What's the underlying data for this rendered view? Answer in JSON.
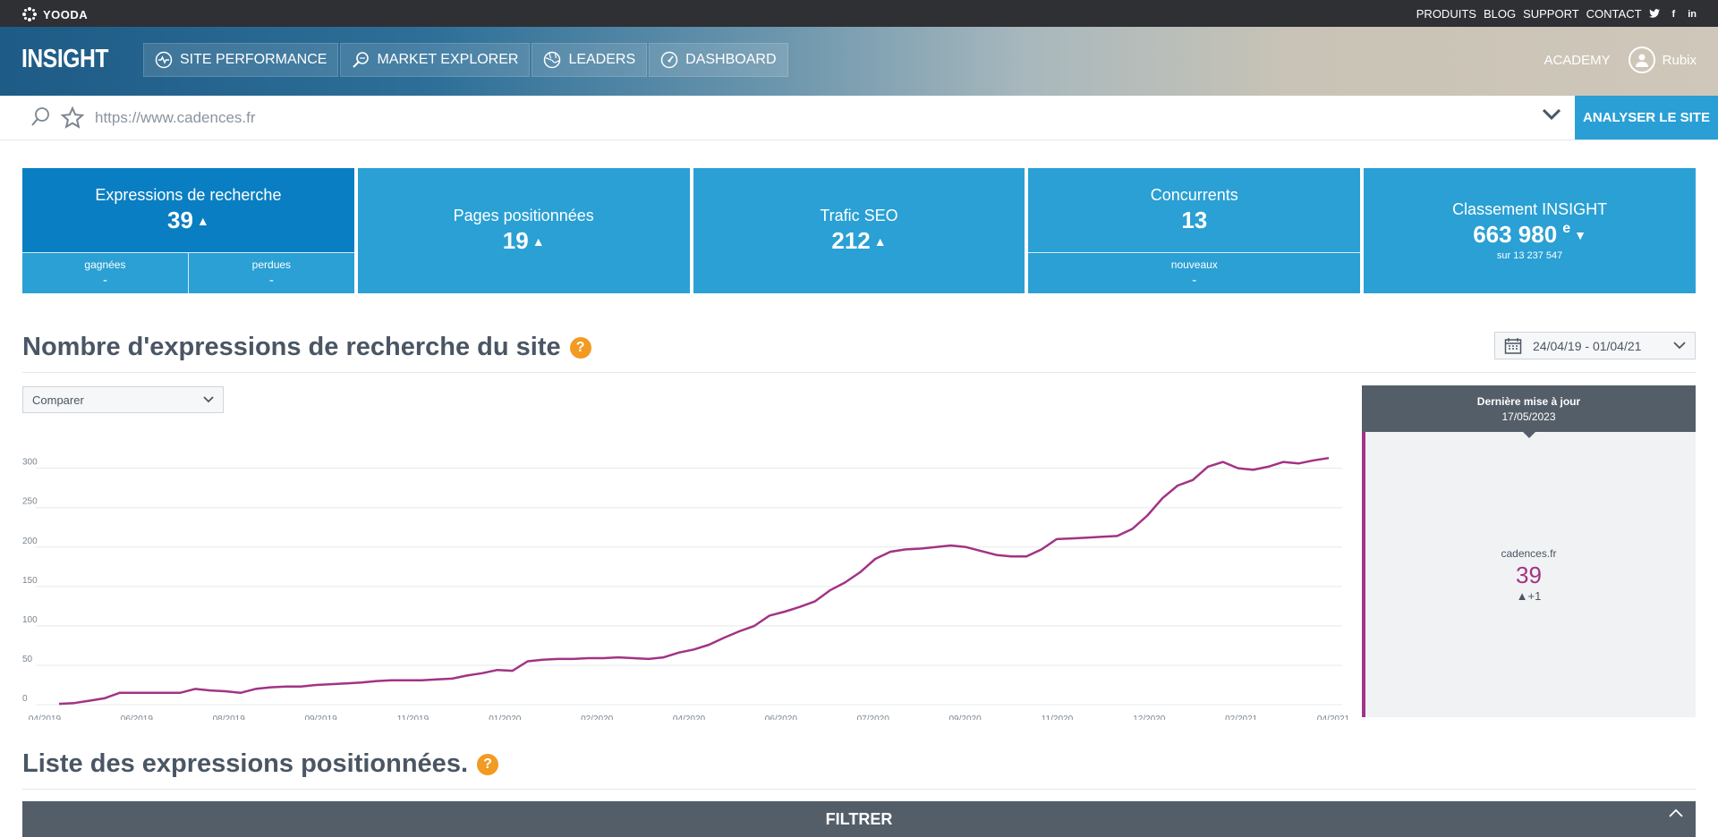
{
  "topbar": {
    "brand": "YOODA",
    "links": [
      "PRODUITS",
      "BLOG",
      "SUPPORT",
      "CONTACT"
    ],
    "social": [
      "twitter",
      "f",
      "in"
    ]
  },
  "header": {
    "logo": "INSIGHT",
    "nav": [
      {
        "label": "SITE PERFORMANCE",
        "icon": "pulse-icon"
      },
      {
        "label": "MARKET EXPLORER",
        "icon": "magnifier-icon"
      },
      {
        "label": "LEADERS",
        "icon": "globe-icon"
      },
      {
        "label": "DASHBOARD",
        "icon": "gauge-icon"
      }
    ],
    "academy": "ACADEMY",
    "user": "Rubix"
  },
  "search": {
    "placeholder": "https://www.cadences.fr",
    "button": "ANALYSER LE SITE"
  },
  "kpis": {
    "expressions": {
      "label": "Expressions de recherche",
      "value": "39",
      "gained_label": "gagnées",
      "gained": "-",
      "lost_label": "perdues",
      "lost": "-"
    },
    "pages": {
      "label": "Pages positionnées",
      "value": "19"
    },
    "traffic": {
      "label": "Trafic SEO",
      "value": "212"
    },
    "competitors": {
      "label": "Concurrents",
      "value": "13",
      "new_label": "nouveaux",
      "new": "-"
    },
    "ranking": {
      "label": "Classement INSIGHT",
      "value": "663 980",
      "suffix": "e",
      "sub": "sur 13 237 547"
    }
  },
  "section1": {
    "title": "Nombre d'expressions de recherche du site",
    "help": "?",
    "daterange": "24/04/19 - 01/04/21",
    "compare": "Comparer"
  },
  "panel": {
    "title": "Dernière mise à jour",
    "date": "17/05/2023",
    "site": "cadences.fr",
    "value": "39",
    "delta": "▲+1"
  },
  "section2": {
    "title": "Liste des expressions positionnées.",
    "help": "?",
    "filter": "FILTRER"
  },
  "colors": {
    "accent": "#2aa0d4",
    "accent_active": "#0a7ec2",
    "line": "#a23385",
    "help": "#f29a22"
  },
  "chart_data": {
    "type": "line",
    "title": "Nombre d'expressions de recherche du site",
    "ylim": [
      0,
      320
    ],
    "yticks": [
      0,
      50,
      100,
      150,
      200,
      250,
      300
    ],
    "xticks": [
      "04/2019",
      "06/2019",
      "08/2019",
      "09/2019",
      "11/2019",
      "01/2020",
      "02/2020",
      "04/2020",
      "06/2020",
      "07/2020",
      "09/2020",
      "11/2020",
      "12/2020",
      "02/2021",
      "04/2021"
    ],
    "series": [
      {
        "name": "cadences.fr",
        "values": [
          1,
          2,
          5,
          8,
          15,
          15,
          15,
          15,
          15,
          20,
          18,
          17,
          15,
          20,
          22,
          23,
          23,
          25,
          26,
          27,
          28,
          30,
          31,
          31,
          31,
          32,
          33,
          37,
          40,
          44,
          43,
          55,
          57,
          58,
          58,
          59,
          59,
          60,
          59,
          58,
          60,
          66,
          70,
          76,
          85,
          93,
          100,
          113,
          118,
          124,
          131,
          145,
          155,
          168,
          185,
          194,
          197,
          198,
          200,
          202,
          200,
          195,
          190,
          188,
          188,
          197,
          210,
          211,
          212,
          213,
          214,
          223,
          240,
          262,
          278,
          285,
          302,
          308,
          300,
          298,
          302,
          308,
          306,
          310,
          313
        ]
      }
    ]
  }
}
